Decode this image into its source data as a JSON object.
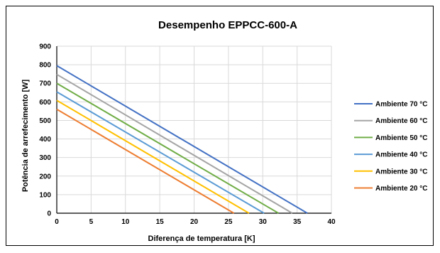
{
  "chart_data": {
    "type": "line",
    "title": "Desempenho EPPCC-600-A",
    "xlabel": "Diferença de temperatura [K]",
    "ylabel": "Potência de arrefecimento [W]",
    "xlim": [
      0,
      40
    ],
    "ylim": [
      0,
      900
    ],
    "x_ticks": [
      0,
      5,
      10,
      15,
      20,
      25,
      30,
      35,
      40
    ],
    "y_ticks": [
      0,
      100,
      200,
      300,
      400,
      500,
      600,
      700,
      800,
      900
    ],
    "grid": true,
    "legend_position": "right",
    "series": [
      {
        "name": "Ambiente 70 °C",
        "color": "#4472C4",
        "x": [
          0,
          36.5
        ],
        "y": [
          795,
          0
        ]
      },
      {
        "name": "Ambiente 60 °C",
        "color": "#A5A5A5",
        "x": [
          0,
          34.3
        ],
        "y": [
          748,
          0
        ]
      },
      {
        "name": "Ambiente 50 °C",
        "color": "#70AD47",
        "x": [
          0,
          32.3
        ],
        "y": [
          700,
          0
        ]
      },
      {
        "name": "Ambiente 40 °C",
        "color": "#5B9BD5",
        "x": [
          0,
          30.2
        ],
        "y": [
          654,
          0
        ]
      },
      {
        "name": "Ambiente 30 °C",
        "color": "#FFC000",
        "x": [
          0,
          28.0
        ],
        "y": [
          608,
          0
        ]
      },
      {
        "name": "Ambiente 20 °C",
        "color": "#ED7D31",
        "x": [
          0,
          25.8
        ],
        "y": [
          560,
          0
        ]
      }
    ]
  }
}
